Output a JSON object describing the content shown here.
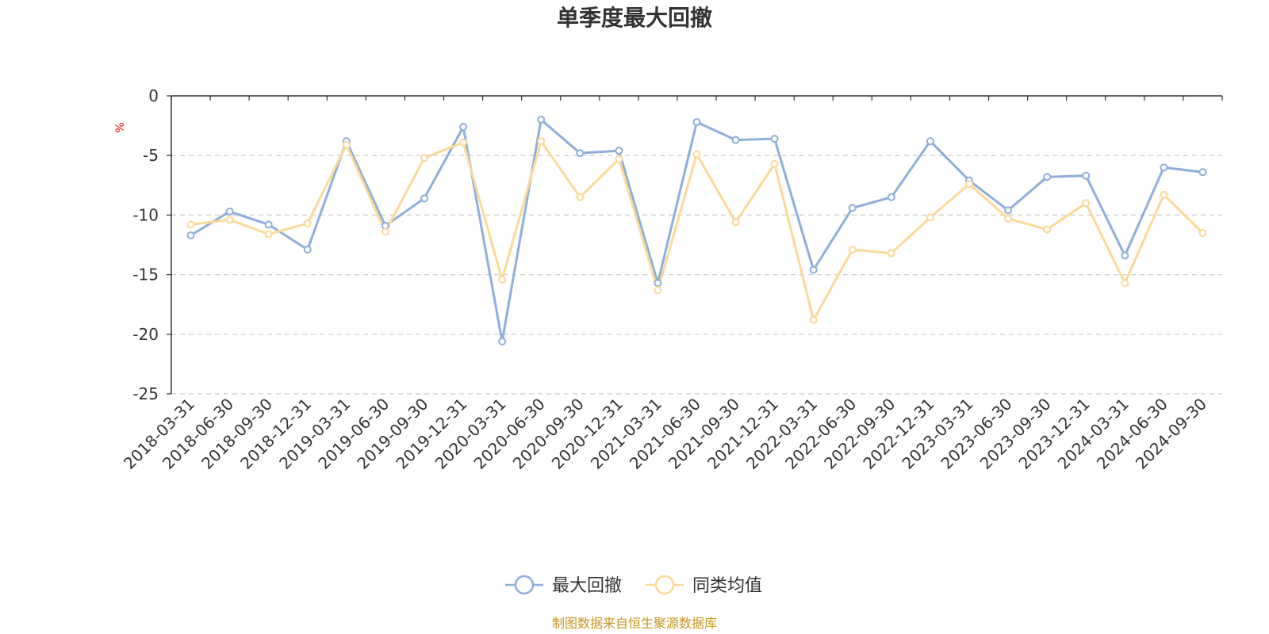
{
  "chart_data": {
    "type": "line",
    "title": "单季度最大回撤",
    "ylabel": "%",
    "ylim": [
      -25,
      0
    ],
    "yticks": [
      0,
      -5,
      -10,
      -15,
      -20,
      -25
    ],
    "grid": true,
    "legend_position": "bottom-center",
    "categories": [
      "2018-03-31",
      "2018-06-30",
      "2018-09-30",
      "2018-12-31",
      "2019-03-31",
      "2019-06-30",
      "2019-09-30",
      "2019-12-31",
      "2020-03-31",
      "2020-06-30",
      "2020-09-30",
      "2020-12-31",
      "2021-03-31",
      "2021-06-30",
      "2021-09-30",
      "2021-12-31",
      "2022-03-31",
      "2022-06-30",
      "2022-09-30",
      "2022-12-31",
      "2023-03-31",
      "2023-06-30",
      "2023-09-30",
      "2023-12-31",
      "2024-03-31",
      "2024-06-30",
      "2024-09-30"
    ],
    "series": [
      {
        "name": "最大回撤",
        "color": "#8eaedb",
        "values": [
          -11.7,
          -9.7,
          -10.8,
          -12.9,
          -3.8,
          -10.9,
          -8.6,
          -2.6,
          -20.6,
          -2.0,
          -4.8,
          -4.6,
          -15.7,
          -2.2,
          -3.7,
          -3.6,
          -14.6,
          -9.4,
          -8.5,
          -3.8,
          -7.1,
          -9.6,
          -6.8,
          -6.7,
          -13.4,
          -6.0,
          -6.4
        ]
      },
      {
        "name": "同类均值",
        "color": "#fcd999",
        "values": [
          -10.8,
          -10.4,
          -11.6,
          -10.7,
          -4.1,
          -11.4,
          -5.2,
          -3.9,
          -15.4,
          -3.8,
          -8.5,
          -5.3,
          -16.3,
          -4.9,
          -10.6,
          -5.7,
          -18.8,
          -12.9,
          -13.2,
          -10.2,
          -7.4,
          -10.3,
          -11.2,
          -9.0,
          -15.7,
          -8.3,
          -11.5
        ]
      }
    ]
  },
  "footer": {
    "source_text": "制图数据来自恒生聚源数据库"
  }
}
